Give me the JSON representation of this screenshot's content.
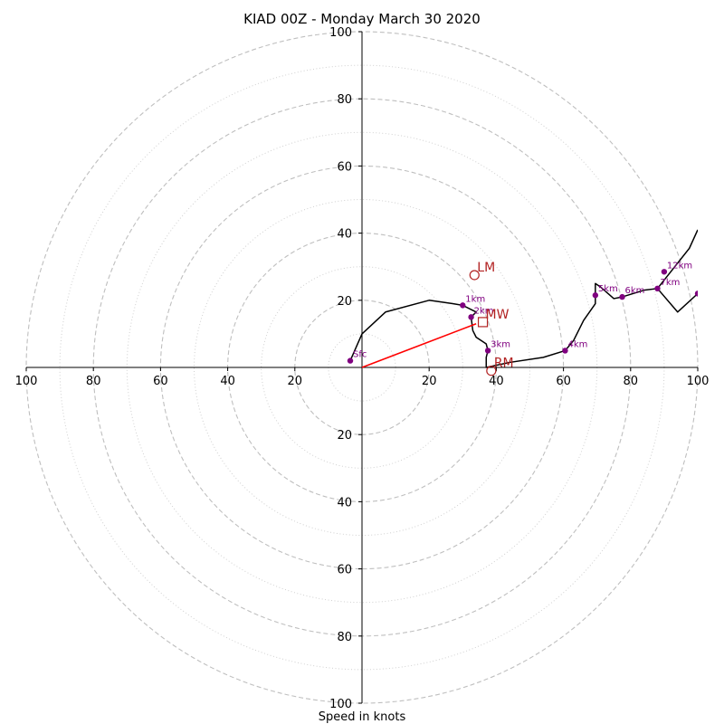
{
  "chart_data": {
    "type": "scatter",
    "title": "KIAD 00Z - Monday March 30 2020",
    "xlabel": "Speed in knots",
    "ylabel": "",
    "xlim": [
      -100,
      100
    ],
    "ylim": [
      -100,
      100
    ],
    "grid": true,
    "tick_values": [
      20,
      40,
      60,
      80,
      100
    ],
    "tick_labels": [
      "20",
      "40",
      "60",
      "80",
      "100"
    ],
    "rings": {
      "major": [
        20,
        40,
        60,
        80,
        100
      ],
      "minor": [
        10,
        30,
        50,
        70,
        90
      ]
    },
    "hodograph": {
      "x": [
        -3.5,
        0,
        7,
        20,
        27,
        30,
        34,
        32.5,
        33,
        34,
        37,
        37.5,
        37,
        37,
        44,
        54,
        60.5,
        63,
        66,
        69.5,
        69.5,
        71,
        75,
        77.5,
        84,
        88,
        94,
        100,
        100
      ],
      "y": [
        2,
        10,
        16.5,
        20,
        19,
        18.5,
        16.5,
        15,
        11,
        9,
        7,
        5,
        3,
        0,
        1.5,
        3,
        5,
        8,
        14,
        19,
        25,
        24,
        20.5,
        21,
        23,
        23.5,
        16.5,
        22,
        22
      ],
      "extension": {
        "x": [
          88,
          97.5,
          100
        ],
        "y": [
          23.5,
          35.5,
          41
        ]
      }
    },
    "height_markers": [
      {
        "label": "Sfc",
        "x": -3.5,
        "y": 2
      },
      {
        "label": "1km",
        "x": 30,
        "y": 18.5
      },
      {
        "label": "2km",
        "x": 32.5,
        "y": 15
      },
      {
        "label": "3km",
        "x": 37.5,
        "y": 5
      },
      {
        "label": "4km",
        "x": 60.5,
        "y": 5
      },
      {
        "label": "5km",
        "x": 69.5,
        "y": 21.5
      },
      {
        "label": "6km",
        "x": 77.5,
        "y": 21
      },
      {
        "label": "7km",
        "x": 88,
        "y": 23.5
      },
      {
        "label": "12km",
        "x": 90,
        "y": 28.5
      },
      {
        "label": "",
        "x": 100,
        "y": 22
      }
    ],
    "storm_motion": {
      "vector": {
        "x": [
          0,
          34
        ],
        "y": [
          0,
          13
        ]
      },
      "points": [
        {
          "label": "LM",
          "symbol": "circle",
          "x": 33.5,
          "y": 27.5
        },
        {
          "label": "MW",
          "symbol": "square",
          "x": 36,
          "y": 13.5
        },
        {
          "label": "RM",
          "symbol": "circle",
          "x": 38.5,
          "y": -1
        }
      ]
    },
    "colors": {
      "hodograph": "#000000",
      "markers": "#800080",
      "storm_motion": "#b22222",
      "vector": "#ff0000",
      "grid": "#bfbfbf"
    }
  }
}
